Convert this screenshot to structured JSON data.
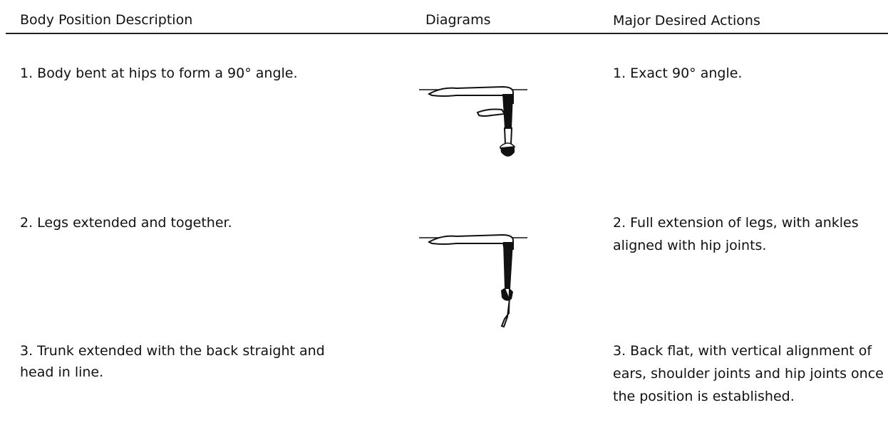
{
  "table": {
    "headers": [
      "Body Position Description",
      "Diagrams",
      "Major Desired Actions"
    ],
    "rows": [
      {
        "description": "1. Body bent at hips to form a 90° angle.",
        "actions": "1. Exact 90° angle."
      },
      {
        "description": "2. Legs extended and together.",
        "actions": "2. Full extension of legs, with ankles aligned with hip joints."
      },
      {
        "description": "3. Trunk extended with the back straight and head in line.",
        "actions": "3. Back flat, with vertical alignment of ears, shoulder joints and hip joints once the position is established."
      }
    ]
  }
}
